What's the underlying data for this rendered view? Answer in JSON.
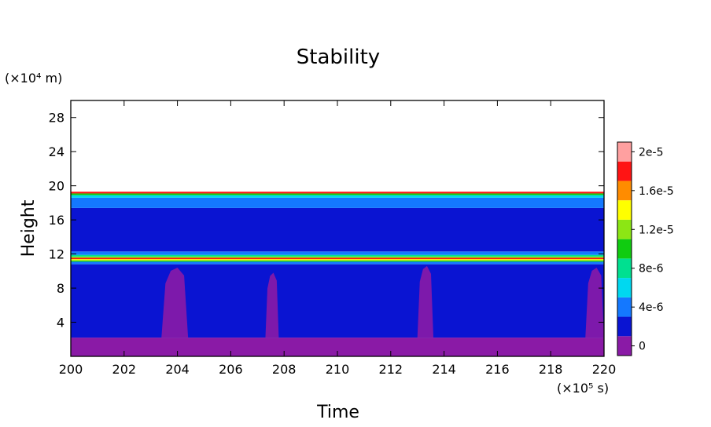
{
  "chart_data": {
    "type": "heatmap",
    "title": "Stability",
    "xlabel": "Time",
    "ylabel": "Height",
    "x_unit_label": "(×10⁵ s)",
    "y_unit_label": "(×10⁴ m)",
    "xlim": [
      200,
      220
    ],
    "ylim": [
      0,
      30
    ],
    "x_ticks": [
      200,
      202,
      204,
      206,
      208,
      210,
      212,
      214,
      216,
      218,
      220
    ],
    "y_ticks": [
      4,
      8,
      12,
      16,
      20,
      24,
      28
    ],
    "colorbar": {
      "levels": [
        0,
        2e-06,
        4e-06,
        6e-06,
        8e-06,
        1e-05,
        1.2e-05,
        1.4e-05,
        1.6e-05,
        1.8e-05,
        2e-05
      ],
      "tick_values": [
        0,
        4e-06,
        8e-06,
        1.2e-05,
        1.6e-05,
        2e-05
      ],
      "tick_labels": [
        "0",
        "4e-6",
        "8e-6",
        "1.2e-5",
        "1.6e-5",
        "2e-5"
      ],
      "colors": [
        "#8a1aa6",
        "#0a14d2",
        "#1478ff",
        "#00d8f0",
        "#00e090",
        "#10cc10",
        "#8ce614",
        "#ffff00",
        "#ff8c00",
        "#ff1414",
        "#ffa0a0"
      ]
    },
    "bands": [
      {
        "y_from": 0,
        "y_to": 2.2,
        "level_index": 0
      },
      {
        "y_from": 2.2,
        "y_to": 10.8,
        "level_index": 1
      },
      {
        "y_from": 10.8,
        "y_to": 11.1,
        "level_index": 2
      },
      {
        "y_from": 11.1,
        "y_to": 11.25,
        "level_index": 5
      },
      {
        "y_from": 11.25,
        "y_to": 11.4,
        "level_index": 7
      },
      {
        "y_from": 11.4,
        "y_to": 11.55,
        "level_index": 9
      },
      {
        "y_from": 11.55,
        "y_to": 11.7,
        "level_index": 6
      },
      {
        "y_from": 11.7,
        "y_to": 11.9,
        "level_index": 4
      },
      {
        "y_from": 11.9,
        "y_to": 12.3,
        "level_index": 2
      },
      {
        "y_from": 12.3,
        "y_to": 17.4,
        "level_index": 1
      },
      {
        "y_from": 17.4,
        "y_to": 18.6,
        "level_index": 2
      },
      {
        "y_from": 18.6,
        "y_to": 18.9,
        "level_index": 3
      },
      {
        "y_from": 18.9,
        "y_to": 19.1,
        "level_index": 5
      },
      {
        "y_from": 19.1,
        "y_to": 19.3,
        "level_index": 9
      }
    ],
    "plumes": [
      {
        "x_from": 203.4,
        "x_to": 204.4,
        "y_to": 10.4,
        "level_index": 0
      },
      {
        "x_from": 207.3,
        "x_to": 207.8,
        "y_to": 9.8,
        "level_index": 0
      },
      {
        "x_from": 213.0,
        "x_to": 213.6,
        "y_to": 10.6,
        "level_index": 0
      },
      {
        "x_from": 219.3,
        "x_to": 220.0,
        "y_to": 10.4,
        "level_index": 0
      }
    ]
  }
}
